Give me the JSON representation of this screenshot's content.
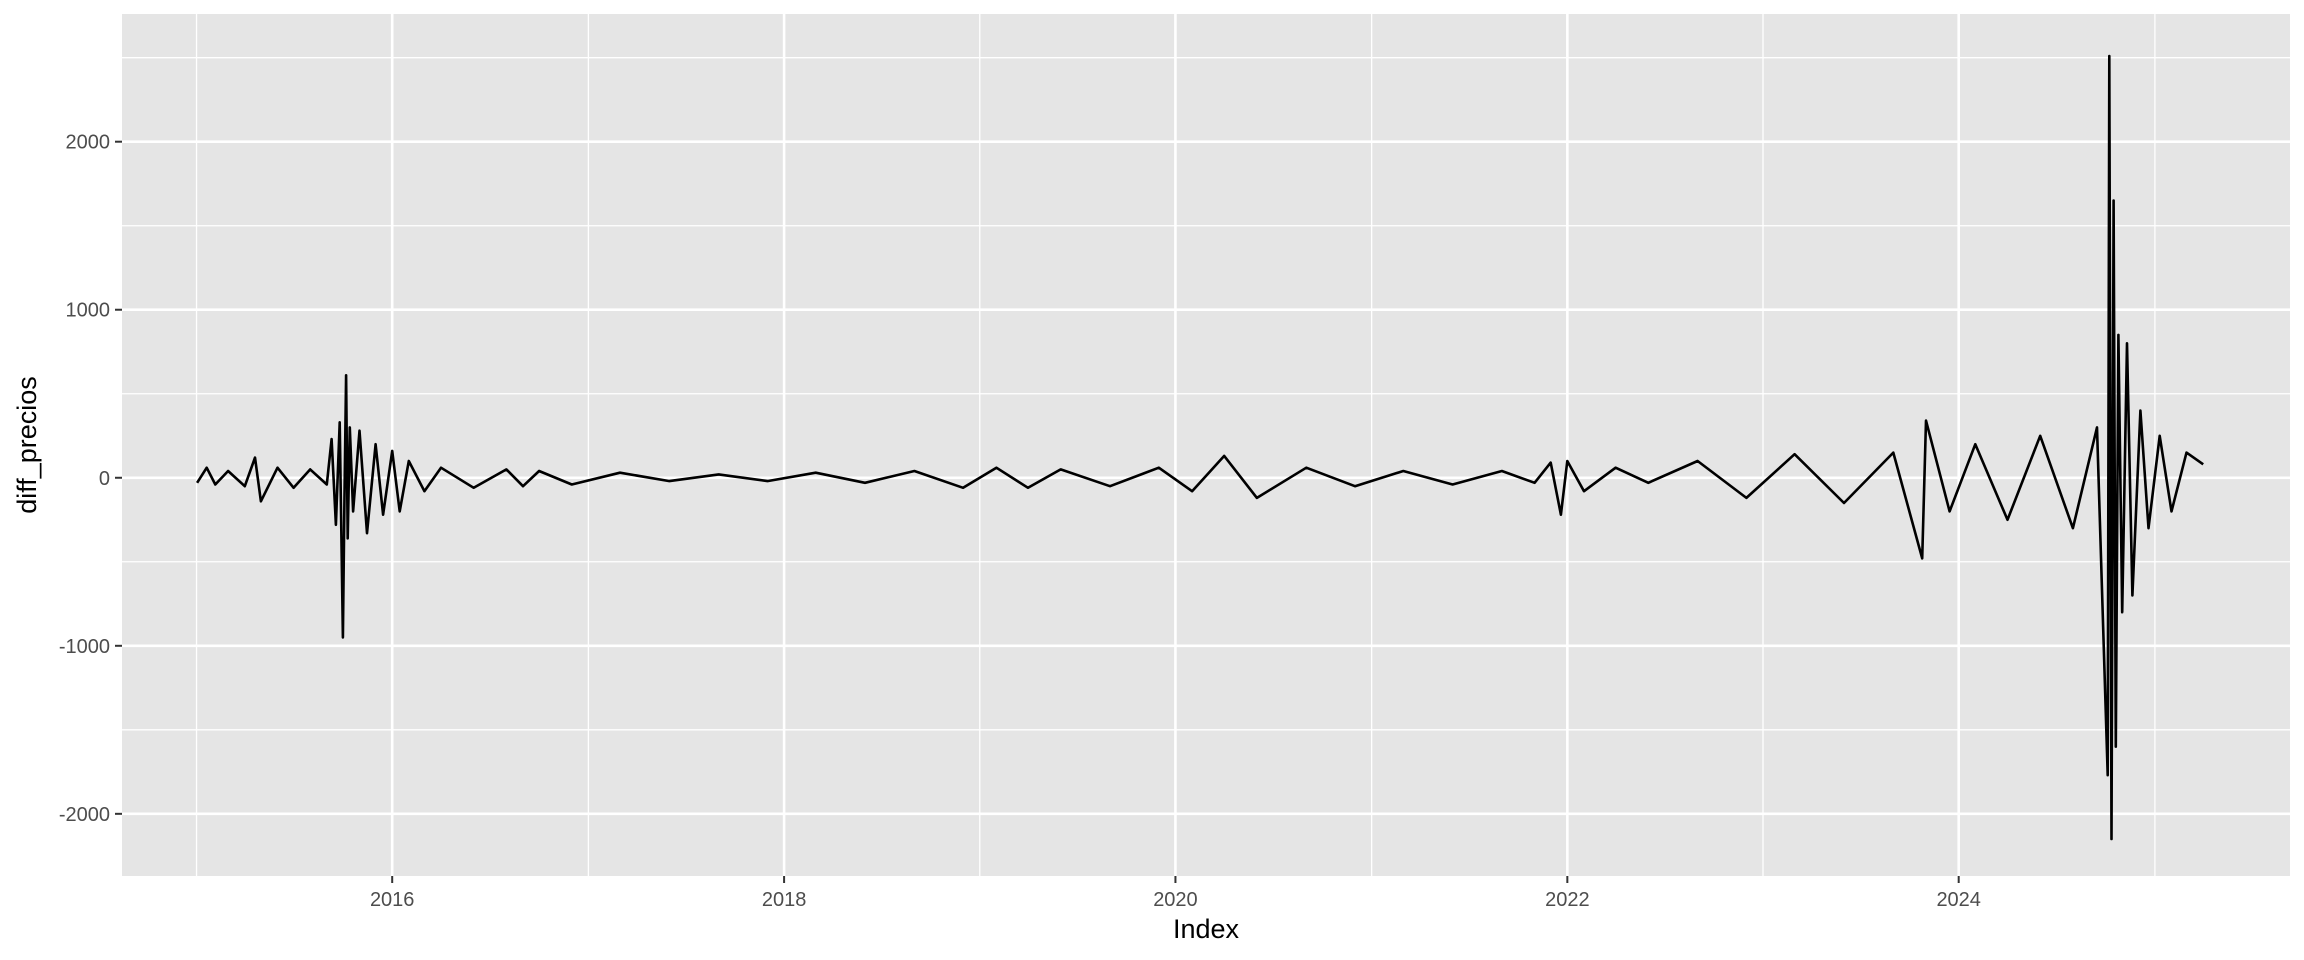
{
  "chart_data": {
    "type": "line",
    "title": "",
    "xlabel": "Index",
    "ylabel": "diff_precios",
    "x_ticks": [
      "2016",
      "2018",
      "2020",
      "2022",
      "2024"
    ],
    "y_ticks": [
      "-2000",
      "-1000",
      "0",
      "1000",
      "2000"
    ],
    "xlim": [
      "2014-08-15",
      "2025-09-10"
    ],
    "ylim": [
      -2370,
      2760
    ],
    "grid": true,
    "legend": "none",
    "colors": {
      "panel": "#e5e5e5",
      "grid": "#ffffff",
      "line": "#000000"
    },
    "series": [
      {
        "x": [
          "2015-01-02",
          "2015-01-20",
          "2015-02-05",
          "2015-03-01",
          "2015-04-01",
          "2015-04-20",
          "2015-05-01",
          "2015-06-01",
          "2015-07-01",
          "2015-08-01",
          "2015-09-01",
          "2015-09-10",
          "2015-09-18",
          "2015-09-25",
          "2015-10-01",
          "2015-10-04",
          "2015-10-07",
          "2015-10-10",
          "2015-10-14",
          "2015-10-20",
          "2015-11-01",
          "2015-11-15",
          "2015-12-01",
          "2015-12-15",
          "2016-01-01",
          "2016-01-15",
          "2016-02-01",
          "2016-03-01",
          "2016-04-01",
          "2016-06-01",
          "2016-08-01",
          "2016-09-01",
          "2016-10-01",
          "2016-12-01",
          "2017-03-01",
          "2017-06-01",
          "2017-09-01",
          "2017-12-01",
          "2018-03-01",
          "2018-06-01",
          "2018-09-01",
          "2018-12-01",
          "2019-02-01",
          "2019-04-01",
          "2019-06-01",
          "2019-09-01",
          "2019-12-01",
          "2020-02-01",
          "2020-04-01",
          "2020-06-01",
          "2020-09-01",
          "2020-12-01",
          "2021-03-01",
          "2021-06-01",
          "2021-09-01",
          "2021-11-01",
          "2021-12-01",
          "2021-12-20",
          "2022-01-01",
          "2022-02-01",
          "2022-04-01",
          "2022-06-01",
          "2022-09-01",
          "2022-12-01",
          "2023-03-01",
          "2023-06-01",
          "2023-09-01",
          "2023-10-25",
          "2023-11-01",
          "2023-12-15",
          "2024-02-01",
          "2024-04-01",
          "2024-06-01",
          "2024-08-01",
          "2024-09-15",
          "2024-10-05",
          "2024-10-08",
          "2024-10-12",
          "2024-10-16",
          "2024-10-20",
          "2024-10-25",
          "2024-11-01",
          "2024-11-10",
          "2024-11-20",
          "2024-12-05",
          "2024-12-20",
          "2025-01-10",
          "2025-02-01",
          "2025-03-01",
          "2025-04-01"
        ],
        "y": [
          -30,
          60,
          -40,
          40,
          -50,
          120,
          -140,
          60,
          -60,
          50,
          -40,
          230,
          -280,
          330,
          -950,
          -100,
          610,
          -360,
          300,
          -200,
          280,
          -330,
          200,
          -220,
          160,
          -200,
          100,
          -80,
          60,
          -60,
          50,
          -50,
          40,
          -40,
          30,
          -20,
          20,
          -20,
          30,
          -30,
          40,
          -60,
          60,
          -60,
          50,
          -50,
          60,
          -80,
          130,
          -120,
          60,
          -50,
          40,
          -40,
          40,
          -30,
          90,
          -220,
          100,
          -80,
          60,
          -30,
          100,
          -120,
          140,
          -150,
          150,
          -480,
          340,
          -200,
          200,
          -250,
          250,
          -300,
          300,
          -1770,
          2510,
          -2150,
          1650,
          -1600,
          850,
          -800,
          800,
          -700,
          400,
          -300,
          250,
          -200,
          150,
          80
        ]
      }
    ]
  }
}
